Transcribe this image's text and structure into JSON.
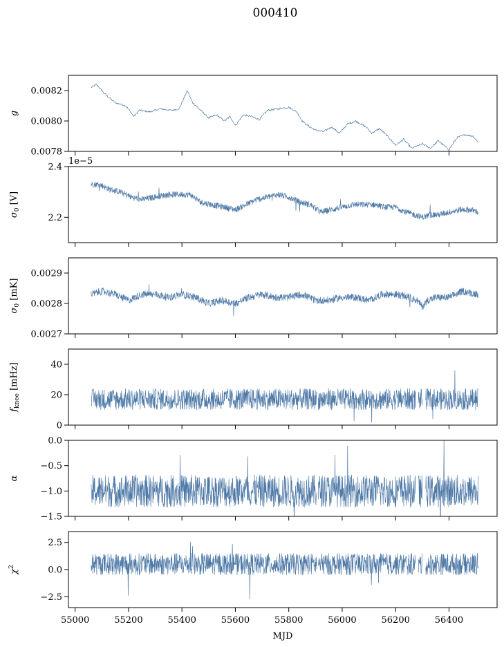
{
  "figure": {
    "title": "000410",
    "xlabel": "MJD",
    "series_color": "#4e79a7"
  },
  "chart_data": [
    {
      "type": "line",
      "title": "",
      "ylabel": "g",
      "ylabel_sub": "",
      "ylabel_unit": "",
      "offset_label": "",
      "xlim": [
        54975,
        56580
      ],
      "ylim": [
        0.0078,
        0.0083
      ],
      "yticks": [
        0.0078,
        0.008,
        0.0082
      ],
      "ytick_labels": [
        "0.0078",
        "0.0080",
        "0.0082"
      ],
      "xticks": [
        55000,
        55200,
        55400,
        55600,
        55800,
        56000,
        56200,
        56400
      ],
      "xtick_labels": [],
      "grid": false,
      "x": [
        55060,
        55080,
        55110,
        55150,
        55190,
        55220,
        55240,
        55280,
        55320,
        55360,
        55390,
        55420,
        55440,
        55470,
        55500,
        55530,
        55560,
        55580,
        55600,
        55630,
        55660,
        55690,
        55720,
        55760,
        55800,
        55830,
        55850,
        55870,
        55900,
        55930,
        55960,
        55990,
        56020,
        56050,
        56070,
        56090,
        56110,
        56140,
        56170,
        56200,
        56230,
        56260,
        56300,
        56330,
        56360,
        56380,
        56400,
        56430,
        56460,
        56490,
        56510
      ],
      "y": [
        0.00822,
        0.00824,
        0.00818,
        0.00812,
        0.0081,
        0.00803,
        0.00807,
        0.00806,
        0.00808,
        0.00807,
        0.00808,
        0.0082,
        0.00812,
        0.00807,
        0.00802,
        0.00804,
        0.008,
        0.00803,
        0.00797,
        0.00804,
        0.00803,
        0.00801,
        0.00807,
        0.00808,
        0.00809,
        0.00806,
        0.008,
        0.00797,
        0.00794,
        0.00793,
        0.00796,
        0.00792,
        0.00798,
        0.008,
        0.00798,
        0.00796,
        0.00792,
        0.00795,
        0.0079,
        0.00784,
        0.00788,
        0.00782,
        0.00785,
        0.00782,
        0.00787,
        0.00784,
        0.00781,
        0.00789,
        0.00791,
        0.0079,
        0.00786
      ]
    },
    {
      "type": "line",
      "title": "",
      "ylabel": "σ",
      "ylabel_sub": "0",
      "ylabel_unit": " [V]",
      "offset_label": "1e−5",
      "xlim": [
        54975,
        56580
      ],
      "ylim": [
        2.1,
        2.4
      ],
      "yticks": [
        2.2,
        2.4
      ],
      "ytick_labels": [
        "2.2",
        "2.4"
      ],
      "xticks": [
        55000,
        55200,
        55400,
        55600,
        55800,
        56000,
        56200,
        56400
      ],
      "xtick_labels": [],
      "grid": false,
      "x": [
        55060,
        55090,
        55130,
        55170,
        55210,
        55250,
        55300,
        55350,
        55400,
        55430,
        55470,
        55510,
        55560,
        55600,
        55640,
        55680,
        55720,
        55760,
        55800,
        55840,
        55880,
        55920,
        55960,
        56000,
        56040,
        56080,
        56120,
        56160,
        56200,
        56240,
        56270,
        56300,
        56330,
        56360,
        56400,
        56440,
        56480,
        56510
      ],
      "y": [
        2.33,
        2.33,
        2.31,
        2.3,
        2.28,
        2.27,
        2.28,
        2.29,
        2.29,
        2.29,
        2.26,
        2.25,
        2.24,
        2.23,
        2.25,
        2.27,
        2.28,
        2.29,
        2.28,
        2.26,
        2.25,
        2.22,
        2.23,
        2.24,
        2.25,
        2.25,
        2.25,
        2.24,
        2.24,
        2.22,
        2.21,
        2.2,
        2.21,
        2.21,
        2.22,
        2.23,
        2.23,
        2.22
      ],
      "noise": 0.012
    },
    {
      "type": "line",
      "title": "",
      "ylabel": "σ",
      "ylabel_sub": "0",
      "ylabel_unit": " [mK]",
      "offset_label": "",
      "xlim": [
        54975,
        56580
      ],
      "ylim": [
        0.0027,
        0.00295
      ],
      "yticks": [
        0.0027,
        0.0028,
        0.0029
      ],
      "ytick_labels": [
        "0.0027",
        "0.0028",
        "0.0029"
      ],
      "xticks": [
        55000,
        55200,
        55400,
        55600,
        55800,
        56000,
        56200,
        56400
      ],
      "xtick_labels": [],
      "grid": false,
      "x": [
        55060,
        55100,
        55150,
        55200,
        55250,
        55300,
        55350,
        55400,
        55450,
        55500,
        55550,
        55600,
        55650,
        55700,
        55750,
        55800,
        55850,
        55900,
        55950,
        56000,
        56050,
        56100,
        56150,
        56200,
        56250,
        56280,
        56300,
        56320,
        56350,
        56400,
        56450,
        56510
      ],
      "y": [
        0.00283,
        0.00284,
        0.00283,
        0.00281,
        0.00283,
        0.00283,
        0.00282,
        0.00283,
        0.00282,
        0.0028,
        0.00281,
        0.0028,
        0.00282,
        0.00283,
        0.00282,
        0.00282,
        0.00283,
        0.00281,
        0.00281,
        0.00282,
        0.00282,
        0.00281,
        0.00283,
        0.00283,
        0.00282,
        0.00281,
        0.00279,
        0.00281,
        0.00282,
        0.00282,
        0.00284,
        0.00283
      ],
      "noise": 1.2e-05
    },
    {
      "type": "line",
      "title": "",
      "ylabel": "f",
      "ylabel_sub": "knee",
      "ylabel_unit": " [mHz]",
      "offset_label": "",
      "xlim": [
        54975,
        56580
      ],
      "ylim": [
        0,
        50
      ],
      "yticks": [
        0,
        20,
        40
      ],
      "ytick_labels": [
        "0",
        "20",
        "40"
      ],
      "xticks": [
        55000,
        55200,
        55400,
        55600,
        55800,
        56000,
        56200,
        56400
      ],
      "xtick_labels": [],
      "grid": false,
      "x": [
        55060,
        56510
      ],
      "y": [
        17,
        17
      ],
      "noise": 7,
      "gaps": [
        [
          55905,
          55910
        ],
        [
          56275,
          56285
        ],
        [
          56300,
          56312
        ]
      ]
    },
    {
      "type": "line",
      "title": "",
      "ylabel": "α",
      "ylabel_sub": "",
      "ylabel_unit": "",
      "offset_label": "",
      "xlim": [
        54975,
        56580
      ],
      "ylim": [
        -1.5,
        0
      ],
      "yticks": [
        -1.5,
        -1.0,
        -0.5,
        0.0
      ],
      "ytick_labels": [
        "−1.5",
        "−1.0",
        "−0.5",
        "0.0"
      ],
      "xticks": [
        55000,
        55200,
        55400,
        55600,
        55800,
        56000,
        56200,
        56400
      ],
      "xtick_labels": [],
      "grid": false,
      "x": [
        55060,
        56510
      ],
      "y": [
        -1.0,
        -1.0
      ],
      "noise": 0.32,
      "gaps": [
        [
          55905,
          55910
        ],
        [
          56275,
          56285
        ],
        [
          56300,
          56312
        ]
      ]
    },
    {
      "type": "line",
      "title": "",
      "ylabel": "χ",
      "ylabel_sub": "",
      "ylabel_sup": "2",
      "ylabel_unit": "",
      "offset_label": "",
      "xlim": [
        54975,
        56580
      ],
      "ylim": [
        -3.5,
        3.5
      ],
      "yticks": [
        -2.5,
        0.0,
        2.5
      ],
      "ytick_labels": [
        "−2.5",
        "0.0",
        "2.5"
      ],
      "xticks": [
        55000,
        55200,
        55400,
        55600,
        55800,
        56000,
        56200,
        56400
      ],
      "xtick_labels": [
        "55000",
        "55200",
        "55400",
        "55600",
        "55800",
        "56000",
        "56200",
        "56400"
      ],
      "grid": false,
      "x": [
        55060,
        56510
      ],
      "y": [
        0.5,
        0.5
      ],
      "noise": 1.0,
      "gaps": [
        [
          55905,
          55910
        ],
        [
          56275,
          56285
        ],
        [
          56300,
          56312
        ]
      ]
    }
  ]
}
